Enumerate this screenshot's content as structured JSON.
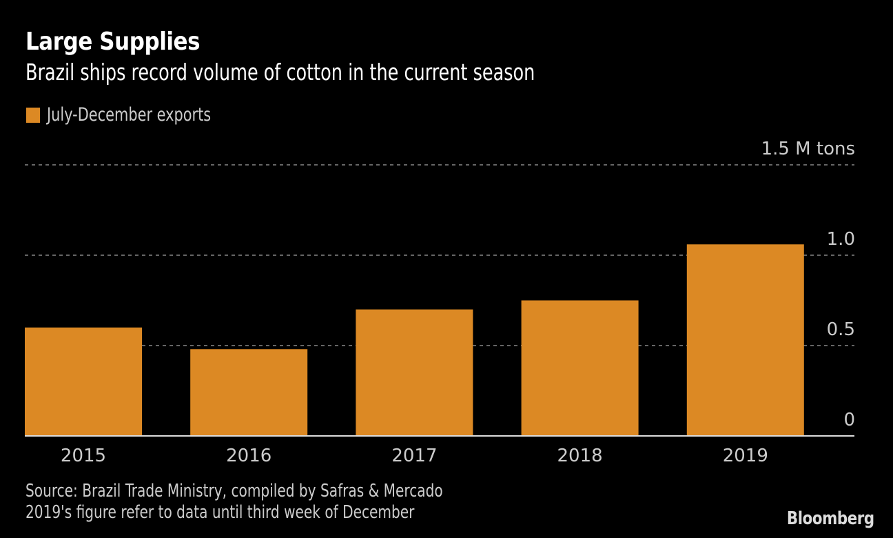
{
  "header": {
    "title": "Large Supplies",
    "subtitle": "Brazil ships record volume of cotton in the current season"
  },
  "footer": {
    "source": "Source: Brazil Trade Ministry, compiled by Safras & Mercado",
    "note": "2019's figure refer to data until third week of December",
    "brand": "Bloomberg"
  },
  "colors": {
    "bar": "#DC8924",
    "background": "#000000",
    "grid": "#666666",
    "axis": "#DDDDDD",
    "text": "#CCCCCC"
  },
  "chart_data": {
    "type": "bar",
    "title": "Large Supplies",
    "subtitle": "Brazil ships record volume of cotton in the current season",
    "categories": [
      "2015",
      "2016",
      "2017",
      "2018",
      "2019"
    ],
    "series": [
      {
        "name": "July-December exports",
        "values": [
          0.6,
          0.48,
          0.7,
          0.75,
          1.06
        ]
      }
    ],
    "legend": {
      "entries": [
        "July-December exports"
      ],
      "placement": "top-left"
    },
    "xlabel": "",
    "ylabel": "M tons",
    "ylim": [
      0,
      1.5
    ],
    "yticks": [
      {
        "value": 0,
        "label": "0"
      },
      {
        "value": 0.5,
        "label": "0.5"
      },
      {
        "value": 1.0,
        "label": "1.0"
      },
      {
        "value": 1.5,
        "label": "1.5 M tons"
      }
    ],
    "y_axis_side": "right",
    "grid": true
  }
}
